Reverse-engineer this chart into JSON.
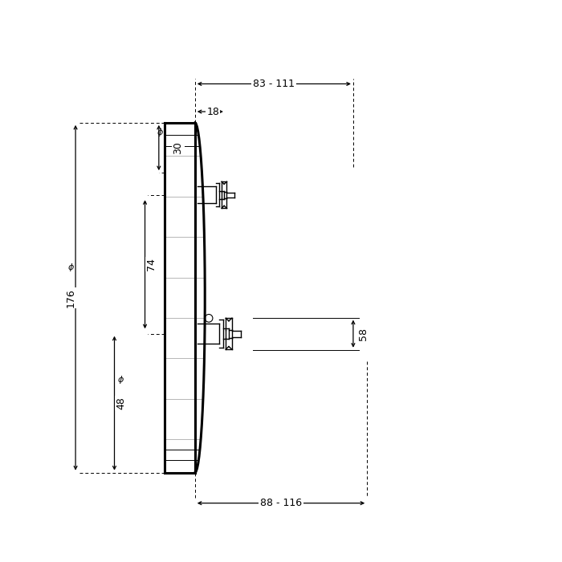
{
  "bg_color": "#ffffff",
  "line_color": "#000000",
  "fig_width": 7.0,
  "fig_height": 7.0,
  "dpi": 100,
  "dim_top": "83 - 111",
  "dim_18": "18",
  "dim_30": "30",
  "dim_176": "176",
  "dim_74": "74",
  "dim_48": "48",
  "dim_58": "58",
  "dim_bottom": "88 - 116"
}
